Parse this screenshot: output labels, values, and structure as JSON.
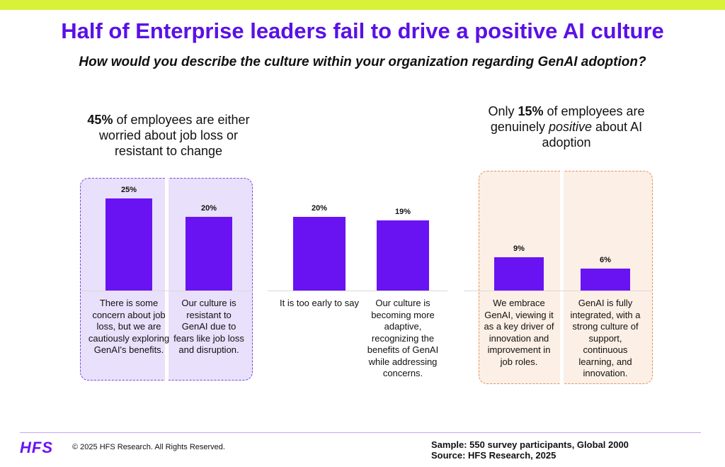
{
  "header": {
    "title": "Half of Enterprise leaders fail to drive a positive AI culture",
    "subtitle": "How would you describe the culture within your organization regarding GenAI adoption?"
  },
  "callouts": {
    "left": {
      "highlight": "45%",
      "text": " of employees are either worried about job loss or resistant to change"
    },
    "right": {
      "prefix": "Only ",
      "highlight": "15%",
      "middle": " of employees are genuinely ",
      "emphasis": "positive",
      "suffix": " about AI adoption"
    }
  },
  "chart_data": {
    "type": "bar",
    "categories": [
      "There is some concern about job loss, but we are cautiously exploring GenAI's benefits.",
      "Our culture is resistant to GenAI due to fears like job loss and disruption.",
      "It is too early to say",
      "Our culture is becoming more adaptive, recognizing the benefits of GenAI while addressing concerns.",
      "We embrace GenAI, viewing it as a key driver of innovation and improvement in job roles.",
      "GenAI is fully integrated, with a strong culture of support, continuous learning, and innovation."
    ],
    "values": [
      25,
      20,
      20,
      19,
      9,
      6
    ],
    "value_labels": [
      "25%",
      "20%",
      "20%",
      "19%",
      "9%",
      "6%"
    ],
    "bar_color": "#6a13f2"
  },
  "colors": {
    "accent": "#5a10e6",
    "bar": "#6a13f2",
    "top_bar": "#d8f23a",
    "purple_box": "#e9e0fb",
    "orange_box": "#fcefe5"
  },
  "footer": {
    "logo": "HFS",
    "copyright": "© 2025 HFS Research. All Rights Reserved.",
    "sample": "Sample: 550 survey participants, Global 2000",
    "source": "Source: HFS Research, 2025"
  }
}
